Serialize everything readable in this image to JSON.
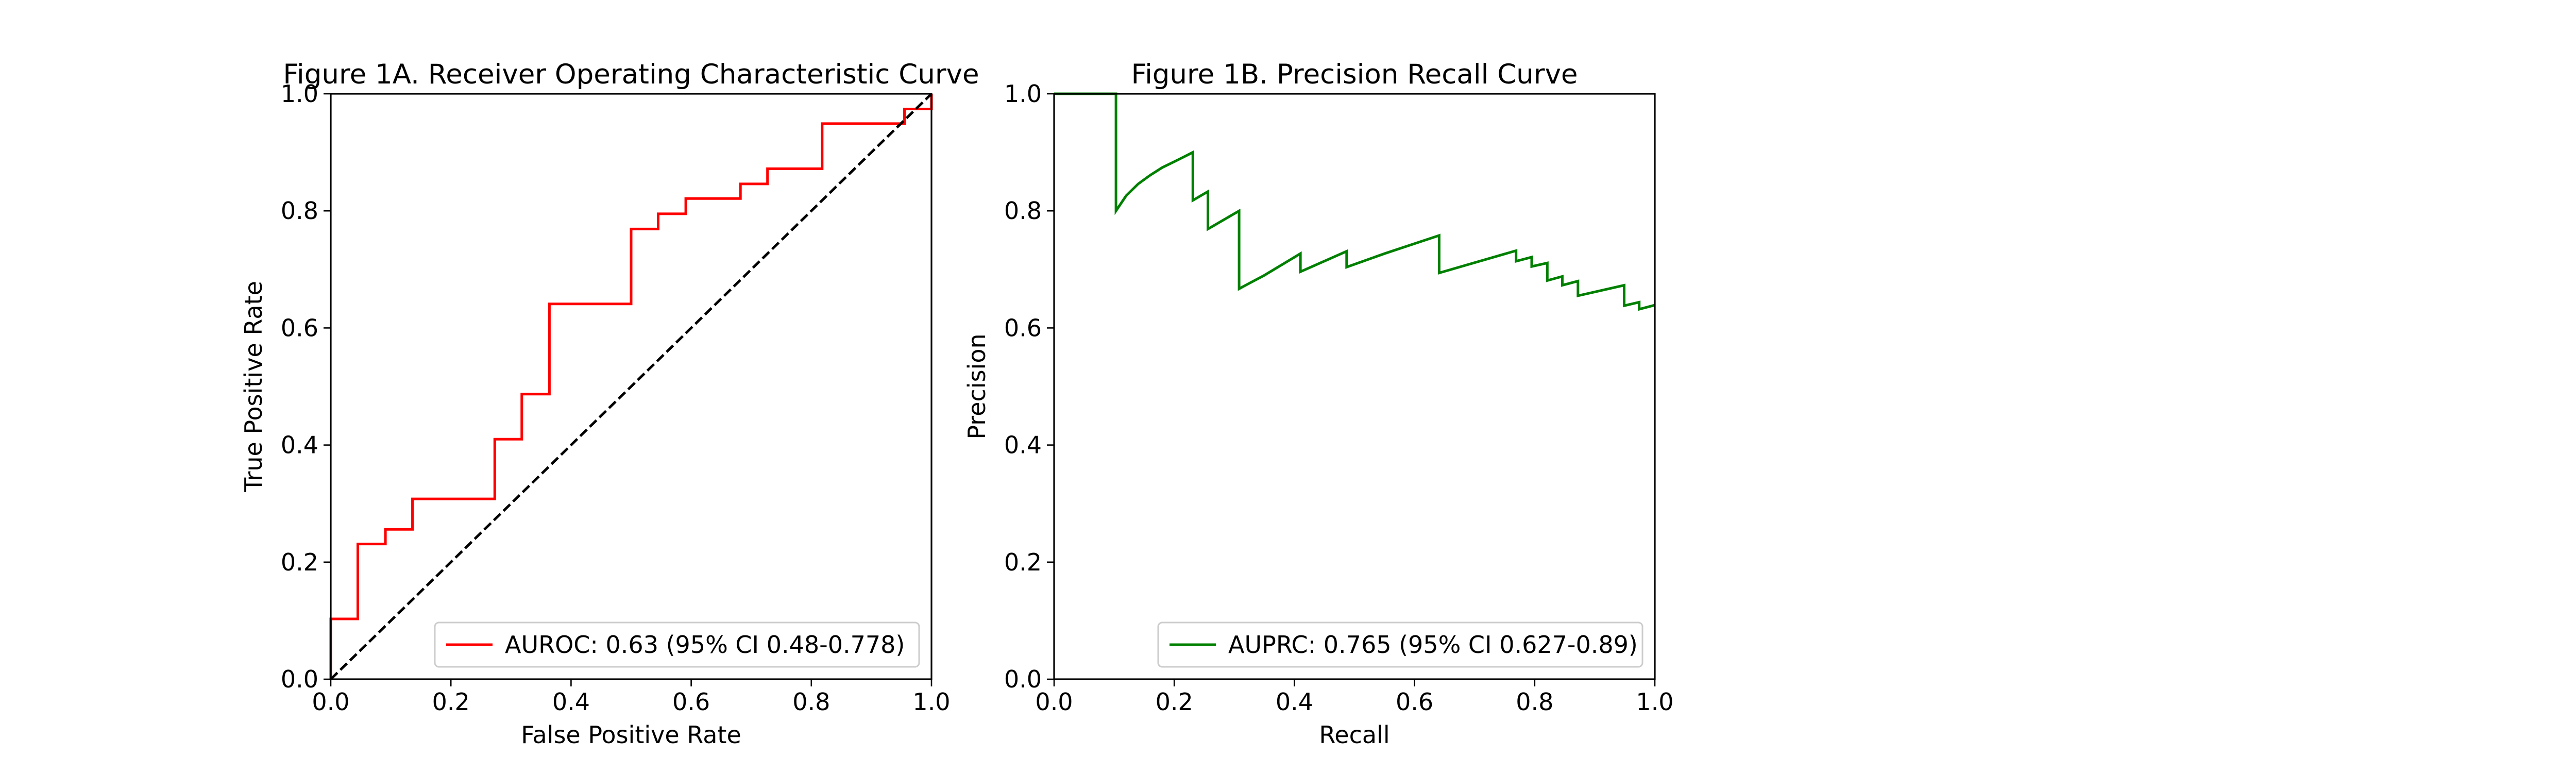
{
  "chart_data": [
    {
      "type": "line",
      "title": "Figure 1A. Receiver Operating Characteristic Curve",
      "xlabel": "False Positive Rate",
      "ylabel": "True Positive Rate",
      "xlim": [
        0.0,
        1.0
      ],
      "ylim": [
        0.0,
        1.0
      ],
      "xticks": [
        "0.0",
        "0.2",
        "0.4",
        "0.6",
        "0.8",
        "1.0"
      ],
      "yticks": [
        "0.0",
        "0.2",
        "0.4",
        "0.6",
        "0.8",
        "1.0"
      ],
      "grid": false,
      "legend_position": "lower-right",
      "series": [
        {
          "name": "AUROC: 0.63 (95% CI 0.48-0.778)",
          "color": "#ff0000",
          "style": "solid",
          "x": [
            0.0,
            0.0,
            0.045,
            0.045,
            0.091,
            0.091,
            0.136,
            0.136,
            0.273,
            0.273,
            0.318,
            0.318,
            0.364,
            0.364,
            0.5,
            0.5,
            0.545,
            0.545,
            0.591,
            0.591,
            0.682,
            0.682,
            0.727,
            0.727,
            0.818,
            0.818,
            0.955,
            0.955,
            1.0,
            1.0
          ],
          "y": [
            0.0,
            0.103,
            0.103,
            0.231,
            0.231,
            0.256,
            0.256,
            0.308,
            0.308,
            0.41,
            0.41,
            0.487,
            0.487,
            0.641,
            0.641,
            0.769,
            0.769,
            0.795,
            0.795,
            0.821,
            0.821,
            0.846,
            0.846,
            0.872,
            0.872,
            0.949,
            0.949,
            0.974,
            0.974,
            1.0
          ]
        },
        {
          "name": "",
          "color": "#000000",
          "style": "dashed",
          "x": [
            0.0,
            1.0
          ],
          "y": [
            0.0,
            1.0
          ]
        }
      ]
    },
    {
      "type": "line",
      "title": "Figure 1B. Precision Recall Curve",
      "xlabel": "Recall",
      "ylabel": "Precision",
      "xlim": [
        0.0,
        1.0
      ],
      "ylim": [
        0.0,
        1.0
      ],
      "xticks": [
        "0.0",
        "0.2",
        "0.4",
        "0.6",
        "0.8",
        "1.0"
      ],
      "yticks": [
        "0.0",
        "0.2",
        "0.4",
        "0.6",
        "0.8",
        "1.0"
      ],
      "grid": false,
      "legend_position": "lower-right",
      "series": [
        {
          "name": "AUPRC: 0.765 (95% CI 0.627-0.89)",
          "color": "#008000",
          "style": "solid",
          "x": [
            0.0,
            0.103,
            0.103,
            0.12,
            0.14,
            0.16,
            0.18,
            0.2,
            0.231,
            0.231,
            0.256,
            0.256,
            0.308,
            0.308,
            0.35,
            0.41,
            0.41,
            0.487,
            0.487,
            0.55,
            0.641,
            0.641,
            0.769,
            0.769,
            0.795,
            0.795,
            0.821,
            0.821,
            0.846,
            0.846,
            0.872,
            0.872,
            0.949,
            0.949,
            0.974,
            0.974,
            1.0
          ],
          "y": [
            1.0,
            1.0,
            0.8,
            0.826,
            0.846,
            0.861,
            0.874,
            0.884,
            0.9,
            0.818,
            0.833,
            0.769,
            0.8,
            0.667,
            0.69,
            0.727,
            0.696,
            0.731,
            0.704,
            0.727,
            0.758,
            0.694,
            0.732,
            0.714,
            0.721,
            0.705,
            0.711,
            0.681,
            0.688,
            0.673,
            0.68,
            0.655,
            0.673,
            0.638,
            0.644,
            0.632,
            0.639
          ]
        }
      ]
    }
  ]
}
